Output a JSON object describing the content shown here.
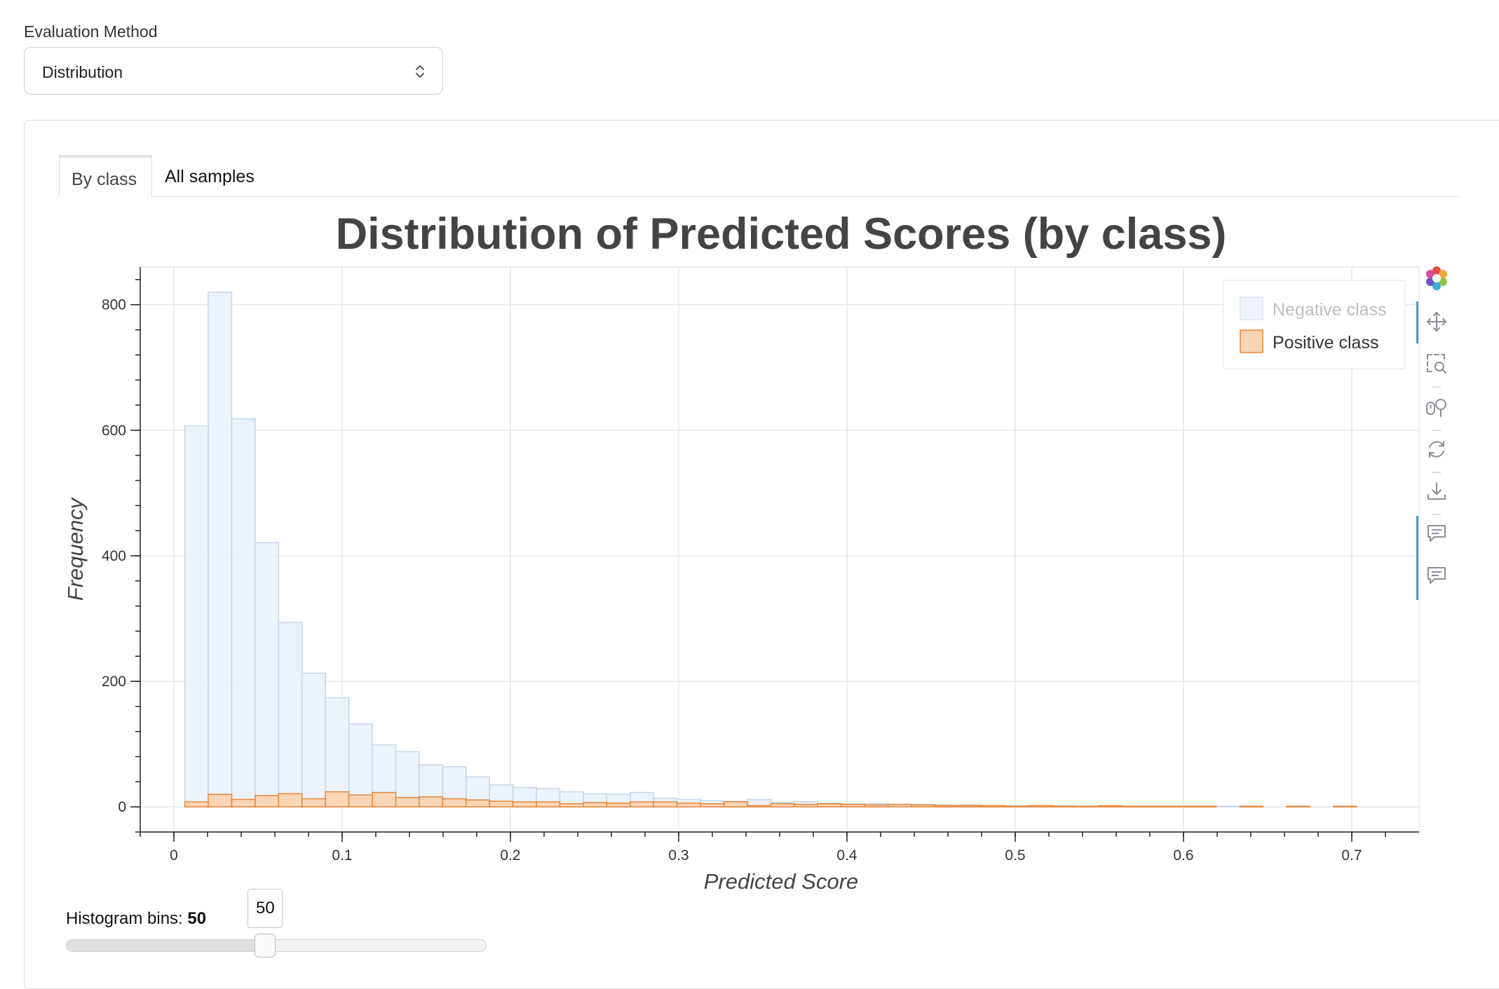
{
  "evaluation_method": {
    "label": "Evaluation Method",
    "selected": "Distribution"
  },
  "tabs": [
    {
      "label": "By class",
      "active": true
    },
    {
      "label": "All samples",
      "active": false
    }
  ],
  "toolbar": {
    "icons": [
      "bokeh-logo-icon",
      "pan-icon",
      "box-zoom-icon",
      "wheel-zoom-icon",
      "reset-icon",
      "save-icon",
      "hover-icon",
      "hover-icon"
    ]
  },
  "histogram_bins": {
    "label": "Histogram bins:",
    "value": "50",
    "min": 5,
    "max": 100,
    "fraction": 0.474
  },
  "colors": {
    "negative_fill": "#e8f0f8",
    "negative_stroke": "#c6d6e8",
    "positive_fill": "#f8d5b6",
    "positive_stroke": "#e8873a"
  },
  "chart_data": {
    "type": "bar",
    "title": "Distribution of Predicted Scores (by class)",
    "xlabel": "Predicted Score",
    "ylabel": "Frequency",
    "xlim": [
      -0.02,
      0.74
    ],
    "ylim": [
      -40,
      860
    ],
    "x_ticks": [
      "0",
      "0.1",
      "0.2",
      "0.3",
      "0.4",
      "0.5",
      "0.6",
      "0.7"
    ],
    "y_ticks": [
      "0",
      "200",
      "400",
      "600",
      "800"
    ],
    "grid": true,
    "legend_position": "top-right",
    "bin_start": 0.0065,
    "bin_width": 0.01393,
    "series": [
      {
        "name": "Negative class",
        "muted": true,
        "values": [
          607,
          820,
          618,
          421,
          294,
          213,
          174,
          132,
          99,
          88,
          67,
          64,
          48,
          35,
          31,
          29,
          24,
          21,
          20,
          23,
          14,
          12,
          10,
          9,
          12,
          7,
          8,
          6,
          5,
          5,
          4,
          4,
          3,
          3,
          2,
          2,
          2,
          2,
          1,
          1,
          1,
          1,
          1,
          1,
          1,
          1,
          0,
          0,
          0,
          0
        ]
      },
      {
        "name": "Positive class",
        "muted": false,
        "values": [
          8,
          20,
          12,
          18,
          21,
          13,
          24,
          19,
          23,
          15,
          16,
          13,
          11,
          9,
          8,
          8,
          5,
          7,
          6,
          8,
          8,
          6,
          5,
          8,
          2,
          5,
          4,
          5,
          4,
          3,
          4,
          3,
          2,
          2,
          2,
          1,
          2,
          1,
          1,
          2,
          1,
          1,
          1,
          1,
          0,
          1,
          0,
          1,
          0,
          1
        ]
      }
    ]
  }
}
